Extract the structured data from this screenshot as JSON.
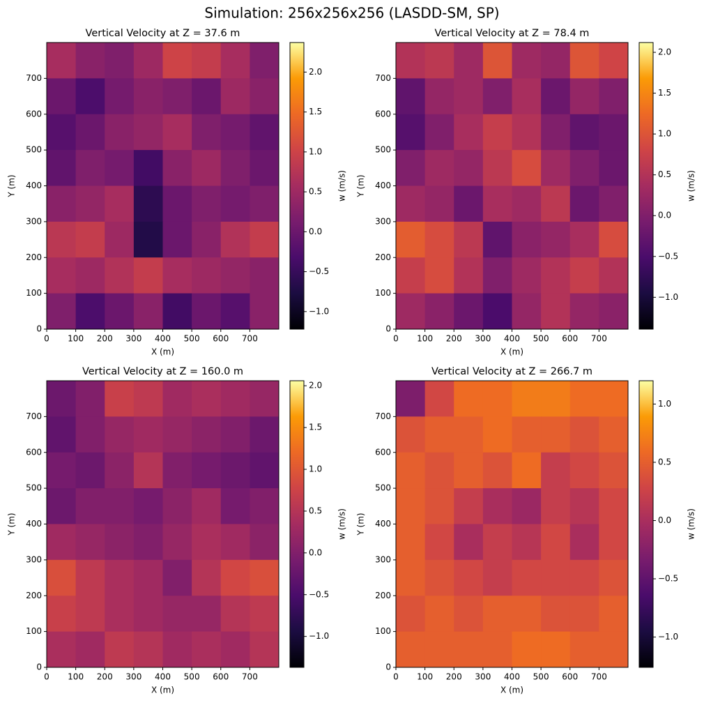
{
  "title": "Simulation: 256x256x256 (LASDD-SM, SP)",
  "chart_data": [
    {
      "type": "heatmap",
      "title": "Vertical Velocity at Z = 37.6 m",
      "x_label": "X (m)",
      "y_label": "Y (m)",
      "colorbar_label": "w (m/s)",
      "colormap": "inferno",
      "x": [
        50,
        150,
        250,
        350,
        450,
        550,
        650,
        750
      ],
      "y": [
        750,
        650,
        550,
        450,
        350,
        250,
        150,
        50
      ],
      "z": [
        [
          0.6,
          0.3,
          0.2,
          0.5,
          1.0,
          0.9,
          0.6,
          0.2
        ],
        [
          0.0,
          -0.3,
          0.1,
          0.3,
          0.2,
          0.0,
          0.5,
          0.3
        ],
        [
          -0.2,
          0.0,
          0.3,
          0.4,
          0.6,
          0.2,
          0.1,
          -0.1
        ],
        [
          -0.1,
          0.2,
          0.1,
          -0.4,
          0.3,
          0.5,
          0.2,
          0.0
        ],
        [
          0.3,
          0.4,
          0.6,
          -0.6,
          0.0,
          0.2,
          0.1,
          0.2
        ],
        [
          0.8,
          0.9,
          0.5,
          -0.7,
          0.0,
          0.3,
          0.7,
          0.9
        ],
        [
          0.6,
          0.5,
          0.7,
          0.9,
          0.6,
          0.5,
          0.4,
          0.3
        ],
        [
          0.2,
          -0.3,
          0.0,
          0.3,
          -0.4,
          0.0,
          -0.2,
          0.3
        ]
      ],
      "xlim": [
        0,
        800
      ],
      "ylim": [
        0,
        800
      ],
      "xticks": [
        0,
        100,
        200,
        300,
        400,
        500,
        600,
        700
      ],
      "yticks": [
        0,
        100,
        200,
        300,
        400,
        500,
        600,
        700
      ],
      "clim": [
        -1.22,
        2.37
      ],
      "cticks": [
        {
          "value": -1.0,
          "label": "−1.0"
        },
        {
          "value": -0.5,
          "label": "−0.5"
        },
        {
          "value": 0,
          "label": "0.0"
        },
        0.5,
        {
          "value": 1,
          "label": "1.0"
        },
        1.5,
        {
          "value": 2,
          "label": "2.0"
        }
      ]
    },
    {
      "type": "heatmap",
      "title": "Vertical Velocity at Z = 78.4 m",
      "x_label": "X (m)",
      "y_label": "Y (m)",
      "colorbar_label": "w (m/s)",
      "colormap": "inferno",
      "x": [
        50,
        150,
        250,
        350,
        450,
        550,
        650,
        750
      ],
      "y": [
        750,
        650,
        550,
        450,
        350,
        250,
        150,
        50
      ],
      "z": [
        [
          0.5,
          0.6,
          0.3,
          1.0,
          0.3,
          0.2,
          1.0,
          0.8
        ],
        [
          -0.3,
          0.2,
          0.3,
          0.0,
          0.4,
          -0.2,
          0.2,
          0.0
        ],
        [
          -0.4,
          0.0,
          0.4,
          0.7,
          0.5,
          0.0,
          -0.3,
          -0.2
        ],
        [
          0.0,
          0.3,
          0.2,
          0.6,
          0.9,
          0.3,
          0.0,
          -0.2
        ],
        [
          0.3,
          0.2,
          -0.2,
          0.4,
          0.3,
          0.6,
          -0.2,
          0.0
        ],
        [
          1.1,
          0.9,
          0.6,
          -0.3,
          0.1,
          0.2,
          0.4,
          0.9
        ],
        [
          0.7,
          0.9,
          0.5,
          0.0,
          0.3,
          0.5,
          0.7,
          0.5
        ],
        [
          0.3,
          0.1,
          -0.2,
          -0.5,
          0.2,
          0.5,
          0.2,
          0.1
        ]
      ],
      "xlim": [
        0,
        800
      ],
      "ylim": [
        0,
        800
      ],
      "xticks": [
        0,
        100,
        200,
        300,
        400,
        500,
        600,
        700
      ],
      "yticks": [
        0,
        100,
        200,
        300,
        400,
        500,
        600,
        700
      ],
      "clim": [
        -1.39,
        2.12
      ],
      "cticks": [
        {
          "value": -1.0,
          "label": "−1.0"
        },
        {
          "value": -0.5,
          "label": "−0.5"
        },
        {
          "value": 0,
          "label": "0.0"
        },
        0.5,
        {
          "value": 1,
          "label": "1.0"
        },
        1.5,
        {
          "value": 2,
          "label": "2.0"
        }
      ]
    },
    {
      "type": "heatmap",
      "title": "Vertical Velocity at Z = 160.0 m",
      "x_label": "X (m)",
      "y_label": "Y (m)",
      "colorbar_label": "w (m/s)",
      "colormap": "inferno",
      "x": [
        50,
        150,
        250,
        350,
        450,
        550,
        650,
        750
      ],
      "y": [
        750,
        650,
        550,
        450,
        350,
        250,
        150,
        50
      ],
      "z": [
        [
          -0.2,
          0.0,
          0.7,
          0.6,
          0.3,
          0.4,
          0.3,
          0.2
        ],
        [
          -0.3,
          0.0,
          0.2,
          0.3,
          0.2,
          0.1,
          0.0,
          -0.2
        ],
        [
          -0.1,
          -0.2,
          0.1,
          0.5,
          0.0,
          -0.1,
          -0.2,
          -0.3
        ],
        [
          -0.2,
          0.0,
          0.0,
          -0.1,
          0.1,
          0.3,
          -0.1,
          0.0
        ],
        [
          0.3,
          0.2,
          0.1,
          0.0,
          0.2,
          0.4,
          0.3,
          0.1
        ],
        [
          0.9,
          0.6,
          0.4,
          0.3,
          0.0,
          0.5,
          0.8,
          0.9
        ],
        [
          0.7,
          0.6,
          0.4,
          0.3,
          0.2,
          0.2,
          0.5,
          0.6
        ],
        [
          0.4,
          0.3,
          0.6,
          0.5,
          0.3,
          0.4,
          0.3,
          0.5
        ]
      ],
      "xlim": [
        0,
        800
      ],
      "ylim": [
        0,
        800
      ],
      "xticks": [
        0,
        100,
        200,
        300,
        400,
        500,
        600,
        700
      ],
      "yticks": [
        0,
        100,
        200,
        300,
        400,
        500,
        600,
        700
      ],
      "clim": [
        -1.37,
        2.06
      ],
      "cticks": [
        {
          "value": -1.0,
          "label": "−1.0"
        },
        {
          "value": -0.5,
          "label": "−0.5"
        },
        {
          "value": 0,
          "label": "0.0"
        },
        0.5,
        {
          "value": 1,
          "label": "1.0"
        },
        1.5,
        {
          "value": 2,
          "label": "2.0"
        }
      ]
    },
    {
      "type": "heatmap",
      "title": "Vertical Velocity at Z = 266.7 m",
      "x_label": "X (m)",
      "y_label": "Y (m)",
      "colorbar_label": "w (m/s)",
      "colormap": "inferno",
      "x": [
        50,
        150,
        250,
        350,
        450,
        550,
        650,
        750
      ],
      "y": [
        750,
        650,
        550,
        450,
        350,
        250,
        150,
        50
      ],
      "z": [
        [
          -0.3,
          0.3,
          0.6,
          0.6,
          0.7,
          0.7,
          0.6,
          0.6
        ],
        [
          0.4,
          0.5,
          0.5,
          0.6,
          0.5,
          0.5,
          0.4,
          0.5
        ],
        [
          0.5,
          0.4,
          0.5,
          0.4,
          0.6,
          0.2,
          0.3,
          0.4
        ],
        [
          0.5,
          0.4,
          0.2,
          0.0,
          -0.1,
          0.2,
          0.1,
          0.3
        ],
        [
          0.5,
          0.3,
          0.0,
          0.2,
          0.1,
          0.3,
          0.0,
          0.3
        ],
        [
          0.5,
          0.4,
          0.3,
          0.2,
          0.3,
          0.3,
          0.3,
          0.4
        ],
        [
          0.4,
          0.5,
          0.4,
          0.5,
          0.5,
          0.4,
          0.4,
          0.5
        ],
        [
          0.5,
          0.5,
          0.5,
          0.5,
          0.6,
          0.6,
          0.5,
          0.5
        ]
      ],
      "xlim": [
        0,
        800
      ],
      "ylim": [
        0,
        800
      ],
      "xticks": [
        0,
        100,
        200,
        300,
        400,
        500,
        600,
        700
      ],
      "yticks": [
        0,
        100,
        200,
        300,
        400,
        500,
        600,
        700
      ],
      "clim": [
        -1.26,
        1.2
      ],
      "cticks": [
        {
          "value": -1.0,
          "label": "−1.0"
        },
        {
          "value": -0.5,
          "label": "−0.5"
        },
        {
          "value": 0,
          "label": "0.0"
        },
        0.5,
        {
          "value": 1,
          "label": "1.0"
        }
      ]
    }
  ]
}
